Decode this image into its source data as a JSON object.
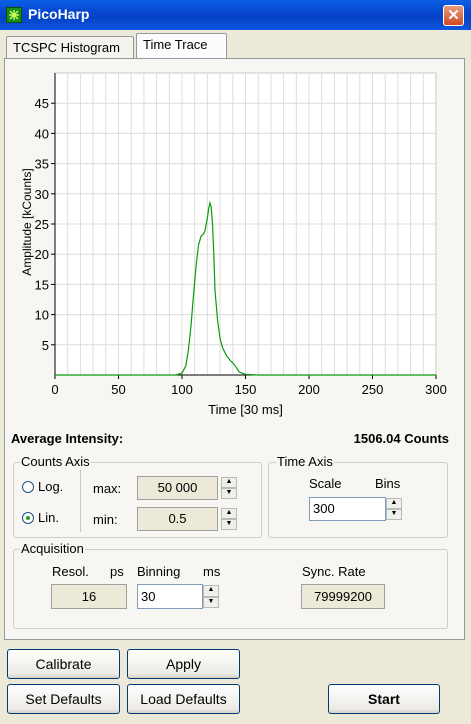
{
  "window": {
    "title": "PicoHarp"
  },
  "tabs": [
    {
      "label": "TCSPC Histogram"
    },
    {
      "label": "Time Trace"
    }
  ],
  "chart_data": {
    "type": "line",
    "xlabel": "Time [30 ms]",
    "ylabel": "Amplitude [kCounts]",
    "xlim": [
      0,
      300
    ],
    "ylim": [
      0,
      50
    ],
    "x_ticks": [
      0,
      50,
      100,
      150,
      200,
      250,
      300
    ],
    "y_ticks": [
      5,
      10,
      15,
      20,
      25,
      30,
      35,
      40,
      45
    ],
    "grid": true,
    "color": "#0a9a0a",
    "series": [
      {
        "x": [
          0,
          95,
          100,
          103,
          105,
          107,
          109,
          111,
          113,
          115,
          117,
          118,
          120,
          121,
          122,
          123,
          124,
          125,
          126,
          128,
          130,
          132,
          135,
          138,
          140,
          143,
          145,
          150,
          160,
          200,
          300
        ],
        "y": [
          0,
          0,
          0.3,
          1.5,
          4,
          8,
          13,
          18,
          21.5,
          23,
          23.4,
          23.8,
          26,
          27.6,
          28.5,
          27.8,
          25,
          20,
          14,
          9,
          6,
          4.5,
          3.2,
          2.4,
          2,
          1.2,
          0.5,
          0.1,
          0,
          0,
          0
        ]
      }
    ]
  },
  "intensity": {
    "label": "Average Intensity:",
    "value": "1506.04 Counts"
  },
  "counts_axis": {
    "title": "Counts Axis",
    "log_label": "Log.",
    "lin_label": "Lin.",
    "selected": "Lin.",
    "max_label": "max:",
    "max_value": "50 000",
    "min_label": "min:",
    "min_value": "0.5"
  },
  "time_axis": {
    "title": "Time Axis",
    "scale_label": "Scale",
    "bins_label": "Bins",
    "value": "300"
  },
  "acquisition": {
    "title": "Acquisition",
    "resol_label": "Resol.",
    "resol_unit": "ps",
    "resol_value": "16",
    "binning_label": "Binning",
    "binning_unit": "ms",
    "binning_value": "30",
    "sync_label": "Sync. Rate",
    "sync_value": "79999200"
  },
  "buttons": {
    "calibrate": "Calibrate",
    "apply": "Apply",
    "set_defaults": "Set Defaults",
    "load_defaults": "Load Defaults",
    "start": "Start"
  }
}
